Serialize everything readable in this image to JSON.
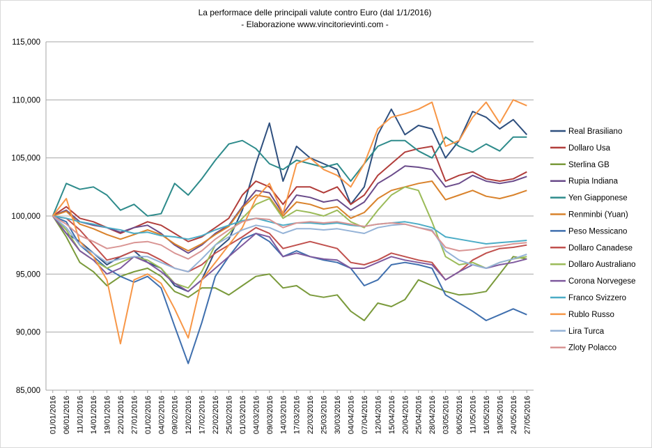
{
  "chart_data": {
    "type": "line",
    "title": "La performace delle principali valute contro Euro (dal 1/1/2016)",
    "subtitle": "- Elaborazione  www.vincitorievinti.com -",
    "xlabel": "",
    "ylabel": "",
    "ylim": [
      85000,
      115000
    ],
    "yticks": [
      "85,000",
      "90,000",
      "95,000",
      "100,000",
      "105,000",
      "110,000",
      "115,000"
    ],
    "grid": "horizontal",
    "legend_position": "right",
    "categories": [
      "01/01/2016",
      "06/01/2016",
      "11/01/2016",
      "14/01/2016",
      "19/01/2016",
      "22/01/2016",
      "27/01/2016",
      "01/02/2016",
      "04/02/2016",
      "09/02/2016",
      "12/02/2016",
      "17/02/2016",
      "22/02/2016",
      "25/02/2016",
      "01/03/2016",
      "04/03/2016",
      "09/03/2016",
      "14/03/2016",
      "17/03/2016",
      "22/03/2016",
      "25/03/2016",
      "30/03/2016",
      "04/04/2016",
      "07/04/2016",
      "12/04/2016",
      "15/04/2016",
      "20/04/2016",
      "25/04/2016",
      "28/04/2016",
      "03/05/2016",
      "06/05/2016",
      "11/05/2016",
      "16/05/2016",
      "19/05/2016",
      "24/05/2016",
      "27/05/2016"
    ],
    "series": [
      {
        "name": "Real Brasiliano",
        "color": "#2e4f7e",
        "values": [
          100000,
          98500,
          97800,
          96800,
          95800,
          96500,
          97000,
          96000,
          95500,
          94000,
          93500,
          94500,
          97000,
          98000,
          100500,
          104500,
          108000,
          103000,
          106000,
          105000,
          104500,
          104000,
          101000,
          102500,
          107000,
          109200,
          107000,
          107800,
          107500,
          105000,
          106500,
          109000,
          108500,
          107500,
          108300,
          107000
        ]
      },
      {
        "name": "Dollaro Usa",
        "color": "#b13d3a",
        "values": [
          100000,
          100800,
          99800,
          99500,
          99000,
          98500,
          99000,
          99500,
          99200,
          98500,
          97800,
          98200,
          99000,
          99800,
          101800,
          103000,
          102500,
          101000,
          102500,
          102500,
          102000,
          102500,
          101000,
          101800,
          103500,
          104500,
          105500,
          105800,
          106000,
          103000,
          103500,
          103800,
          103200,
          103000,
          103200,
          103800
        ]
      },
      {
        "name": "Sterlina GB",
        "color": "#7a9a3b",
        "values": [
          100000,
          98200,
          96000,
          95200,
          94000,
          94800,
          95200,
          95500,
          94800,
          93500,
          93000,
          93800,
          93800,
          93200,
          94000,
          94800,
          95000,
          93800,
          94000,
          93200,
          93000,
          93200,
          91800,
          91000,
          92500,
          92200,
          92800,
          94500,
          94000,
          93500,
          93200,
          93300,
          93500,
          95000,
          96500,
          96300
        ]
      },
      {
        "name": "Rupia Indiana",
        "color": "#6a4b8a",
        "values": [
          100000,
          100500,
          99500,
          99200,
          99000,
          98600,
          99000,
          99200,
          98500,
          97500,
          96800,
          97500,
          98500,
          99200,
          100800,
          102200,
          102000,
          100200,
          101800,
          101600,
          101200,
          101400,
          100500,
          101200,
          102800,
          103500,
          104300,
          104200,
          104000,
          102500,
          102800,
          103500,
          103000,
          102800,
          103000,
          103400
        ]
      },
      {
        "name": "Yen Giapponese",
        "color": "#2e8b8b",
        "values": [
          100000,
          102800,
          102300,
          102500,
          101800,
          100500,
          101000,
          100000,
          100200,
          102800,
          101800,
          103200,
          104800,
          106200,
          106500,
          105800,
          104500,
          104000,
          104800,
          104500,
          104200,
          104500,
          103000,
          104500,
          106000,
          106500,
          106500,
          105600,
          105000,
          106800,
          106000,
          105500,
          106200,
          105600,
          106800,
          106800
        ]
      },
      {
        "name": "Renminbi (Yuan)",
        "color": "#d9822b",
        "values": [
          100000,
          100400,
          99300,
          98900,
          98400,
          98000,
          98400,
          98800,
          98400,
          97600,
          97000,
          97600,
          98400,
          99100,
          100700,
          101800,
          101600,
          100000,
          101200,
          101000,
          100600,
          100800,
          99800,
          100300,
          101500,
          102200,
          102500,
          102800,
          103000,
          101400,
          101800,
          102200,
          101700,
          101500,
          101800,
          102200
        ]
      },
      {
        "name": "Peso Messicano",
        "color": "#3f6fae",
        "values": [
          100000,
          99500,
          97500,
          96500,
          95500,
          94800,
          94300,
          94800,
          93800,
          90500,
          87300,
          90800,
          94800,
          96500,
          98000,
          98500,
          97800,
          96500,
          97000,
          96500,
          96200,
          96000,
          95500,
          94000,
          94500,
          95800,
          96000,
          95800,
          95500,
          93200,
          92500,
          91800,
          91000,
          91500,
          92000,
          91500
        ]
      },
      {
        "name": "Dollaro Canadese",
        "color": "#c0504d",
        "values": [
          100000,
          99800,
          98800,
          97500,
          96200,
          96500,
          97000,
          96800,
          96200,
          95500,
          95200,
          95800,
          96800,
          97500,
          98200,
          99000,
          98500,
          97200,
          97500,
          97800,
          97500,
          97200,
          96000,
          95800,
          96200,
          96800,
          96500,
          96200,
          96000,
          94500,
          95200,
          96200,
          96800,
          97200,
          97300,
          97500
        ]
      },
      {
        "name": "Dollaro Australiano",
        "color": "#9bbb59",
        "values": [
          100000,
          98800,
          97000,
          96200,
          95500,
          96000,
          96500,
          96200,
          95500,
          94200,
          93800,
          95200,
          97500,
          98500,
          99800,
          101000,
          101500,
          99800,
          100500,
          100300,
          100000,
          100500,
          99500,
          99000,
          100500,
          101800,
          102500,
          102200,
          99500,
          96500,
          95800,
          96000,
          95500,
          96000,
          96300,
          96500
        ]
      },
      {
        "name": "Corona Norvegese",
        "color": "#7f5a9e",
        "values": [
          100000,
          98500,
          97000,
          96200,
          95000,
          95500,
          96500,
          96000,
          95200,
          94200,
          93500,
          94500,
          95500,
          96500,
          97500,
          98500,
          98200,
          96500,
          96800,
          96500,
          96300,
          96200,
          95500,
          95500,
          96000,
          96500,
          96200,
          96000,
          95800,
          94500,
          95200,
          95800,
          95500,
          95800,
          96000,
          96300
        ]
      },
      {
        "name": "Franco Svizzero",
        "color": "#4bacc6",
        "values": [
          100000,
          99800,
          99500,
          99300,
          99000,
          98800,
          98500,
          98600,
          98300,
          98200,
          98000,
          98300,
          98800,
          99200,
          99600,
          99800,
          99500,
          99200,
          99400,
          99400,
          99300,
          99400,
          99200,
          99100,
          99300,
          99400,
          99500,
          99300,
          99000,
          98200,
          98000,
          97800,
          97600,
          97700,
          97800,
          97900
        ]
      },
      {
        "name": "Rublo Russo",
        "color": "#f79646",
        "values": [
          100000,
          101500,
          97800,
          96500,
          94500,
          89000,
          94500,
          95000,
          94200,
          92000,
          89500,
          94500,
          96000,
          97500,
          99000,
          101500,
          102800,
          100200,
          104500,
          105000,
          104000,
          103500,
          102500,
          104500,
          107500,
          108500,
          108800,
          109200,
          109800,
          106000,
          106500,
          108500,
          109800,
          108000,
          110000,
          109500
        ]
      },
      {
        "name": "Lira Turca",
        "color": "#95b3d7",
        "values": [
          100000,
          99000,
          97500,
          96800,
          96000,
          96300,
          96500,
          96500,
          96000,
          95500,
          95200,
          96300,
          97500,
          98200,
          98800,
          99200,
          99000,
          98500,
          98900,
          98900,
          98800,
          98900,
          98700,
          98500,
          99000,
          99200,
          99300,
          99000,
          98800,
          97000,
          96200,
          95800,
          95500,
          96000,
          96300,
          96700
        ]
      },
      {
        "name": "Zloty Polacco",
        "color": "#d99594",
        "values": [
          100000,
          99300,
          98300,
          97800,
          97200,
          97400,
          97700,
          97800,
          97500,
          96800,
          96300,
          97000,
          98000,
          98800,
          99500,
          99800,
          99700,
          99000,
          99400,
          99500,
          99400,
          99500,
          99300,
          99100,
          99300,
          99400,
          99300,
          99000,
          98700,
          97300,
          97000,
          97100,
          97300,
          97400,
          97600,
          97700
        ]
      }
    ]
  }
}
